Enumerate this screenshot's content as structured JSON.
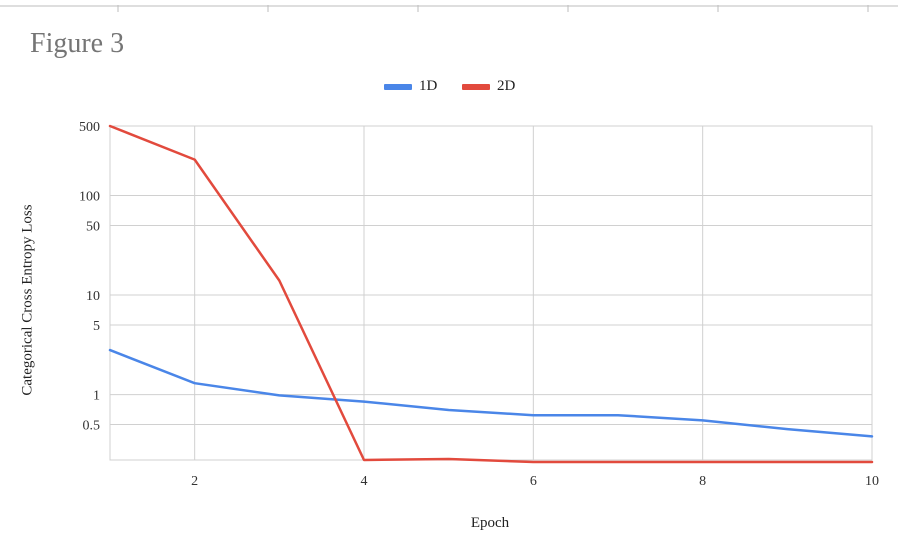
{
  "figure_title": "Figure 3",
  "colors": {
    "series_1D": "#4a86e8",
    "series_2D": "#e24a3d",
    "grid": "#d0d0d0",
    "title": "#757575"
  },
  "chart_data": {
    "type": "line",
    "title": "",
    "xlabel": "Epoch",
    "ylabel": "Categorical Cross Entropy Loss",
    "yscale": "log",
    "x": [
      1,
      2,
      3,
      4,
      5,
      6,
      7,
      8,
      9,
      10
    ],
    "xlim": [
      1,
      10
    ],
    "xticks": [
      "2",
      "4",
      "6",
      "8",
      "10"
    ],
    "yticks": [
      "500",
      "100",
      "50",
      "10",
      "5",
      "1",
      "0.5"
    ],
    "ylim": [
      0.22,
      500
    ],
    "grid": true,
    "legend_position": "top",
    "series": [
      {
        "name": "1D",
        "values": [
          2.8,
          1.3,
          0.98,
          0.85,
          0.7,
          0.62,
          0.62,
          0.55,
          0.45,
          0.38
        ]
      },
      {
        "name": "2D",
        "values": [
          500,
          230,
          14,
          0.22,
          0.225,
          0.21,
          0.21,
          0.21,
          0.21,
          0.21
        ]
      }
    ]
  }
}
